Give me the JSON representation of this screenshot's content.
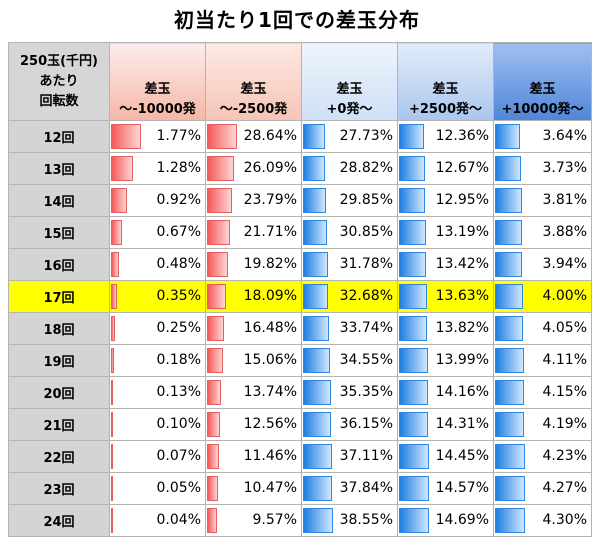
{
  "title": "初当たり1回での差玉分布",
  "header": {
    "corner": [
      "250玉(千円)",
      "あたり",
      "回転数"
    ],
    "columns": [
      [
        "差玉",
        "～-10000発"
      ],
      [
        "差玉",
        "～-2500発"
      ],
      [
        "差玉",
        "+0発～"
      ],
      [
        "差玉",
        "+2500発～"
      ],
      [
        "差玉",
        "+10000発～"
      ]
    ]
  },
  "colors": {
    "highlight_row": "#ffff00",
    "negative_bar": "#f45a5a",
    "positive_bar": "#1f7fe0"
  },
  "chart_data": {
    "type": "table",
    "title": "初当たり1回での差玉分布",
    "row_header": "250玉(千円)あたり回転数",
    "columns": [
      "差玉～-10000発",
      "差玉～-2500発",
      "差玉+0発～",
      "差玉+2500発～",
      "差玉+10000発～"
    ],
    "highlight_row": "17回",
    "rows": [
      {
        "label": "12回",
        "values": [
          "1.77%",
          "28.64%",
          "27.73%",
          "12.36%",
          "3.64%"
        ]
      },
      {
        "label": "13回",
        "values": [
          "1.28%",
          "26.09%",
          "28.82%",
          "12.67%",
          "3.73%"
        ]
      },
      {
        "label": "14回",
        "values": [
          "0.92%",
          "23.79%",
          "29.85%",
          "12.95%",
          "3.81%"
        ]
      },
      {
        "label": "15回",
        "values": [
          "0.67%",
          "21.71%",
          "30.85%",
          "13.19%",
          "3.88%"
        ]
      },
      {
        "label": "16回",
        "values": [
          "0.48%",
          "19.82%",
          "31.78%",
          "13.42%",
          "3.94%"
        ]
      },
      {
        "label": "17回",
        "values": [
          "0.35%",
          "18.09%",
          "32.68%",
          "13.63%",
          "4.00%"
        ]
      },
      {
        "label": "18回",
        "values": [
          "0.25%",
          "16.48%",
          "33.74%",
          "13.82%",
          "4.05%"
        ]
      },
      {
        "label": "19回",
        "values": [
          "0.18%",
          "15.06%",
          "34.55%",
          "13.99%",
          "4.11%"
        ]
      },
      {
        "label": "20回",
        "values": [
          "0.13%",
          "13.74%",
          "35.35%",
          "14.16%",
          "4.15%"
        ]
      },
      {
        "label": "21回",
        "values": [
          "0.10%",
          "12.56%",
          "36.15%",
          "14.31%",
          "4.19%"
        ]
      },
      {
        "label": "22回",
        "values": [
          "0.07%",
          "11.46%",
          "37.11%",
          "14.45%",
          "4.23%"
        ]
      },
      {
        "label": "23回",
        "values": [
          "0.05%",
          "10.47%",
          "37.84%",
          "14.57%",
          "4.27%"
        ]
      },
      {
        "label": "24回",
        "values": [
          "0.04%",
          "9.57%",
          "38.55%",
          "14.69%",
          "4.30%"
        ]
      }
    ]
  }
}
